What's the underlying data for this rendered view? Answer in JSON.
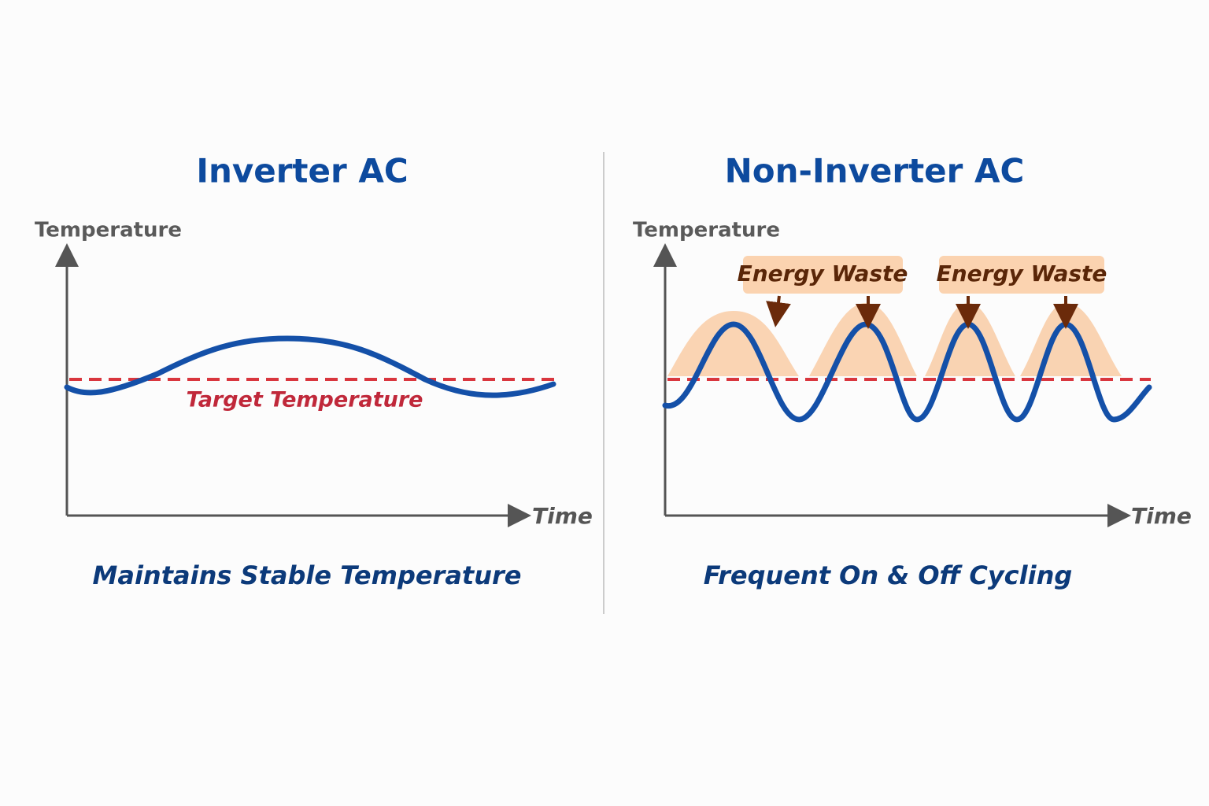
{
  "left": {
    "title": "Inverter AC",
    "y_label": "Temperature",
    "x_label": "Time",
    "line_label": "Target Temperature",
    "caption": "Maintains Stable Temperature"
  },
  "right": {
    "title": "Non-Inverter AC",
    "y_label": "Temperature",
    "x_label": "Time",
    "callouts": [
      "Energy Waste",
      "Energy Waste"
    ],
    "caption": "Frequent On & Off Cycling"
  }
}
